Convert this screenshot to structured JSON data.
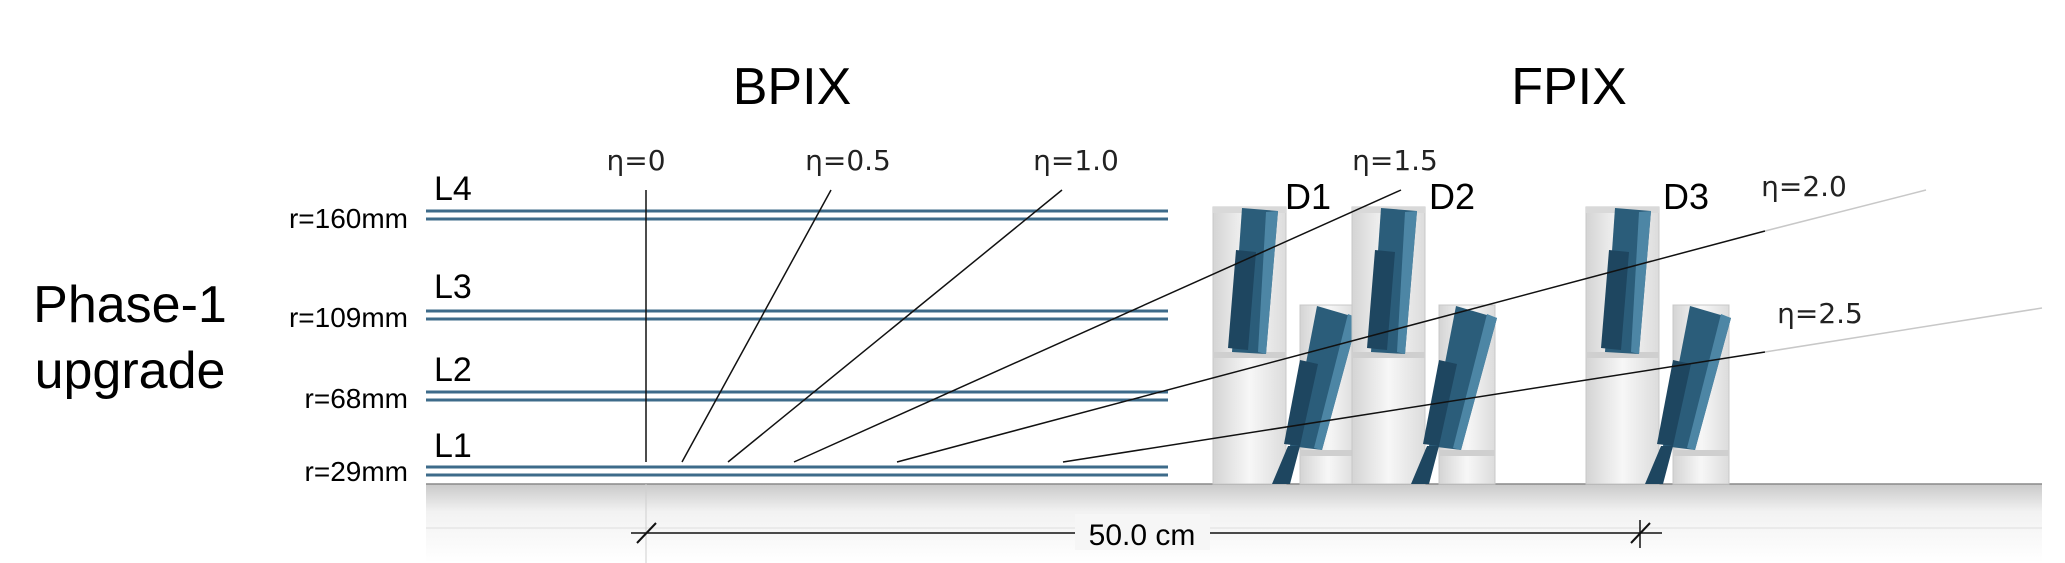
{
  "side_label": [
    "Phase-1",
    "upgrade"
  ],
  "sections": {
    "barrel": "BPIX",
    "forward": "FPIX"
  },
  "layers": [
    {
      "name": "L4",
      "radius": "r=160mm"
    },
    {
      "name": "L3",
      "radius": "r=109mm"
    },
    {
      "name": "L2",
      "radius": "r=68mm"
    },
    {
      "name": "L1",
      "radius": "r=29mm"
    }
  ],
  "disks": [
    "D1",
    "D2",
    "D3"
  ],
  "eta_lines": [
    "η=0",
    "η=0.5",
    "η=1.0",
    "η=1.5",
    "η=2.0",
    "η=2.5"
  ],
  "scale_label": "50.0 cm",
  "colors": {
    "layer_line": "#3d6b8a",
    "module_fill": "#2b5d7a",
    "module_dark": "#1e4660",
    "module_light": "#4d86a5",
    "support": "#e8e8e8"
  }
}
